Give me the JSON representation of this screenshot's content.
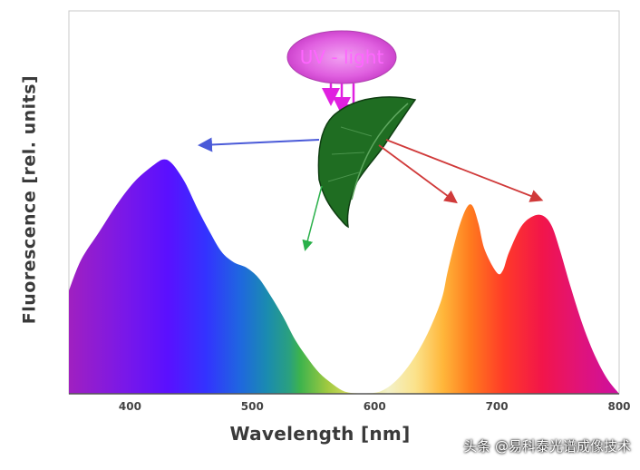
{
  "chart_data": {
    "type": "area",
    "xlabel": "Wavelength [nm]",
    "ylabel": "Fluorescence [rel. units]",
    "xlim": [
      350,
      800
    ],
    "ylim": [
      0,
      100
    ],
    "x_ticks": [
      "400",
      "500",
      "600",
      "700",
      "800"
    ],
    "x_tick_values": [
      400,
      500,
      600,
      700,
      800
    ],
    "grid": false,
    "annotation": "UV - light",
    "series": [
      {
        "values_x": [
          350,
          360,
          375,
          390,
          405,
          420,
          428,
          435,
          445,
          455,
          465,
          475,
          485,
          495,
          505,
          515,
          525,
          535,
          545,
          555,
          565,
          575,
          585,
          595,
          605,
          615,
          625,
          635,
          645,
          655,
          660,
          668,
          675,
          680,
          685,
          690,
          700,
          705,
          710,
          720,
          730,
          738,
          745,
          752,
          760,
          770,
          780,
          790,
          800
        ],
        "values_y": [
          40,
          52,
          63,
          74,
          83,
          89,
          91,
          89,
          82,
          72,
          63,
          55,
          51,
          49,
          45,
          38,
          30,
          21,
          14,
          8,
          4,
          1,
          0.2,
          0.2,
          1,
          4,
          9,
          16,
          25,
          37,
          48,
          63,
          72,
          73,
          66,
          56,
          47,
          48,
          55,
          65,
          69,
          69,
          65,
          55,
          42,
          27,
          15,
          6,
          0
        ]
      }
    ]
  },
  "watermark": "头条 @易科泰光谱成像技术"
}
